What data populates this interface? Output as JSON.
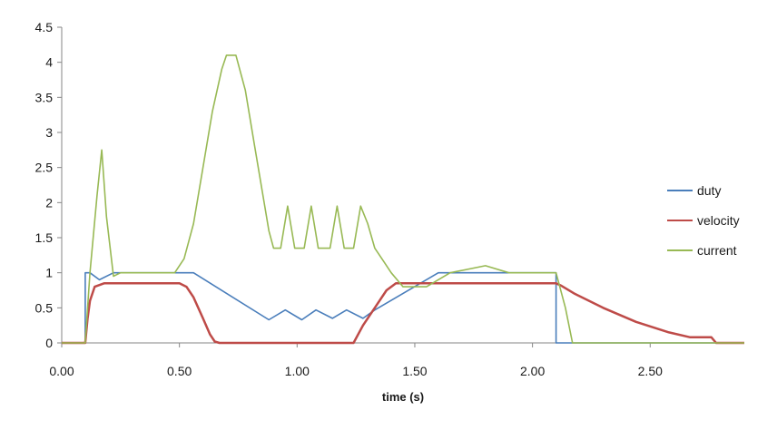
{
  "chart_data": {
    "type": "line",
    "title": "",
    "xlabel": "time (s)",
    "ylabel": "",
    "xlim": [
      0,
      2.9
    ],
    "ylim": [
      0,
      4.5
    ],
    "x_ticks": [
      "0.00",
      "0.50",
      "1.00",
      "1.50",
      "2.00",
      "2.50"
    ],
    "x_tick_values": [
      0,
      0.5,
      1.0,
      1.5,
      2.0,
      2.5
    ],
    "y_ticks": [
      "0",
      "0.5",
      "1",
      "1.5",
      "2",
      "2.5",
      "3",
      "3.5",
      "4",
      "4.5"
    ],
    "y_tick_values": [
      0,
      0.5,
      1,
      1.5,
      2,
      2.5,
      3,
      3.5,
      4,
      4.5
    ],
    "grid": false,
    "legend_position": "right",
    "series": [
      {
        "name": "duty",
        "color": "#4a7ebb",
        "points": [
          [
            0,
            0
          ],
          [
            0.1,
            0
          ],
          [
            0.1,
            1.0
          ],
          [
            0.12,
            1.0
          ],
          [
            0.16,
            0.9
          ],
          [
            0.22,
            1.0
          ],
          [
            0.56,
            1.0
          ],
          [
            0.88,
            0.33
          ],
          [
            0.95,
            0.47
          ],
          [
            1.02,
            0.33
          ],
          [
            1.08,
            0.47
          ],
          [
            1.15,
            0.35
          ],
          [
            1.21,
            0.47
          ],
          [
            1.28,
            0.35
          ],
          [
            1.33,
            0.47
          ],
          [
            1.6,
            1.0
          ],
          [
            2.1,
            1.0
          ],
          [
            2.1,
            0
          ],
          [
            2.9,
            0
          ]
        ]
      },
      {
        "name": "velocity",
        "color": "#be4b48",
        "points": [
          [
            0,
            0
          ],
          [
            0.1,
            0
          ],
          [
            0.11,
            0.35
          ],
          [
            0.12,
            0.6
          ],
          [
            0.14,
            0.8
          ],
          [
            0.18,
            0.85
          ],
          [
            0.5,
            0.85
          ],
          [
            0.53,
            0.8
          ],
          [
            0.56,
            0.65
          ],
          [
            0.6,
            0.35
          ],
          [
            0.63,
            0.12
          ],
          [
            0.65,
            0.02
          ],
          [
            0.67,
            0
          ],
          [
            1.24,
            0
          ],
          [
            1.28,
            0.25
          ],
          [
            1.33,
            0.5
          ],
          [
            1.38,
            0.75
          ],
          [
            1.42,
            0.85
          ],
          [
            2.1,
            0.85
          ],
          [
            2.12,
            0.82
          ],
          [
            2.18,
            0.7
          ],
          [
            2.3,
            0.5
          ],
          [
            2.44,
            0.3
          ],
          [
            2.58,
            0.15
          ],
          [
            2.67,
            0.08
          ],
          [
            2.76,
            0.08
          ],
          [
            2.78,
            0
          ],
          [
            2.9,
            0
          ]
        ]
      },
      {
        "name": "current",
        "color": "#98b954",
        "points": [
          [
            0,
            0
          ],
          [
            0.1,
            0
          ],
          [
            0.12,
            1.0
          ],
          [
            0.15,
            2.1
          ],
          [
            0.17,
            2.75
          ],
          [
            0.19,
            1.8
          ],
          [
            0.22,
            0.95
          ],
          [
            0.25,
            1.0
          ],
          [
            0.48,
            1.0
          ],
          [
            0.52,
            1.2
          ],
          [
            0.56,
            1.7
          ],
          [
            0.6,
            2.5
          ],
          [
            0.64,
            3.3
          ],
          [
            0.68,
            3.9
          ],
          [
            0.7,
            4.1
          ],
          [
            0.74,
            4.1
          ],
          [
            0.78,
            3.6
          ],
          [
            0.82,
            2.8
          ],
          [
            0.86,
            2.0
          ],
          [
            0.88,
            1.6
          ],
          [
            0.9,
            1.35
          ],
          [
            0.93,
            1.35
          ],
          [
            0.96,
            1.95
          ],
          [
            0.99,
            1.35
          ],
          [
            1.03,
            1.35
          ],
          [
            1.06,
            1.95
          ],
          [
            1.09,
            1.35
          ],
          [
            1.14,
            1.35
          ],
          [
            1.17,
            1.95
          ],
          [
            1.2,
            1.35
          ],
          [
            1.24,
            1.35
          ],
          [
            1.27,
            1.95
          ],
          [
            1.3,
            1.7
          ],
          [
            1.33,
            1.35
          ],
          [
            1.37,
            1.15
          ],
          [
            1.4,
            1.0
          ],
          [
            1.45,
            0.8
          ],
          [
            1.55,
            0.8
          ],
          [
            1.65,
            1.0
          ],
          [
            1.8,
            1.1
          ],
          [
            1.9,
            1.0
          ],
          [
            2.1,
            1.0
          ],
          [
            2.14,
            0.5
          ],
          [
            2.17,
            0
          ],
          [
            2.9,
            0
          ]
        ]
      }
    ]
  }
}
